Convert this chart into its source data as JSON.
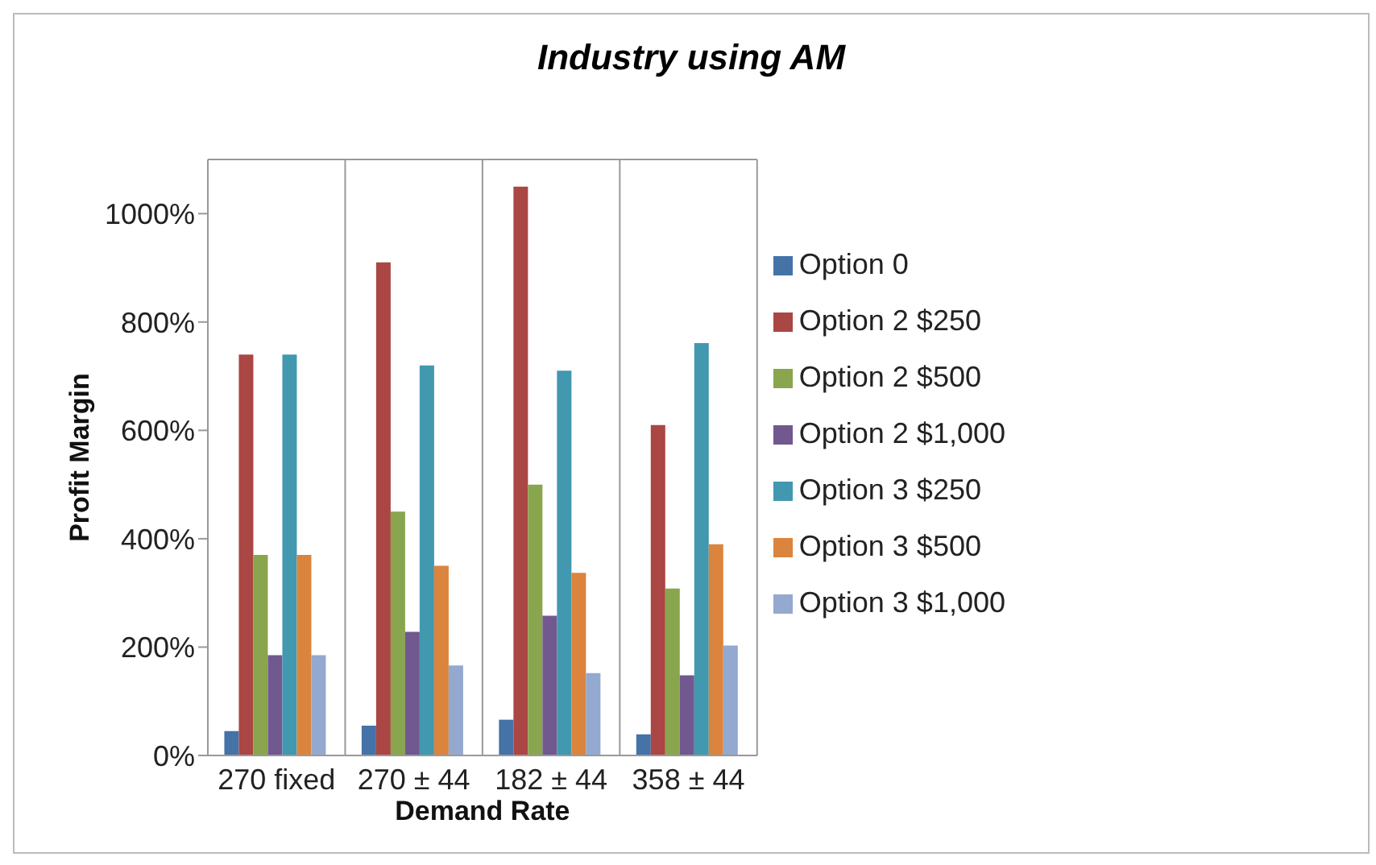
{
  "chart_data": {
    "type": "bar",
    "title": "Industry using AM",
    "xlabel": "Demand Rate",
    "ylabel": "Profit Margin",
    "categories": [
      "270 fixed",
      "270 ± 44",
      "182 ± 44",
      "358 ± 44"
    ],
    "series": [
      {
        "name": "Option 0",
        "color": "#4572a7",
        "values": [
          45,
          55,
          66,
          39
        ]
      },
      {
        "name": "Option 2 $250",
        "color": "#aa4643",
        "values": [
          740,
          910,
          1050,
          610
        ]
      },
      {
        "name": "Option 2 $500",
        "color": "#89a54e",
        "values": [
          370,
          450,
          500,
          308
        ]
      },
      {
        "name": "Option 2 $1,000",
        "color": "#71588f",
        "values": [
          185,
          228,
          258,
          148
        ]
      },
      {
        "name": "Option 3 $250",
        "color": "#4198af",
        "values": [
          740,
          720,
          710,
          761
        ]
      },
      {
        "name": "Option 3 $500",
        "color": "#db843d",
        "values": [
          370,
          350,
          337,
          390
        ]
      },
      {
        "name": "Option 3 $1,000",
        "color": "#93a9cf",
        "values": [
          185,
          166,
          152,
          203
        ]
      }
    ],
    "ylim": [
      0,
      1100
    ],
    "yticks": [
      {
        "value": 0,
        "label": "0%"
      },
      {
        "value": 200,
        "label": "200%"
      },
      {
        "value": 400,
        "label": "400%"
      },
      {
        "value": 600,
        "label": "600%"
      },
      {
        "value": 800,
        "label": "800%"
      },
      {
        "value": 1000,
        "label": "1000%"
      }
    ],
    "grid": true,
    "legend": "right"
  }
}
